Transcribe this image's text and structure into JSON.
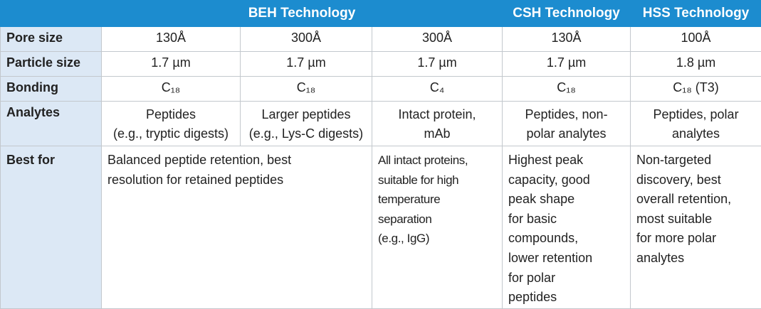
{
  "table": {
    "header": [
      "BEH Technology",
      "CSH Technology",
      "HSS Technology"
    ],
    "rows": [
      {
        "label": "Pore size",
        "cells": [
          "130Å",
          "300Å",
          "300Å",
          "130Å",
          "100Å"
        ]
      },
      {
        "label": "Particle size",
        "cells": [
          "1.7 µm",
          "1.7 µm",
          "1.7 µm",
          "1.7 µm",
          "1.8 µm"
        ]
      },
      {
        "label": "Bonding",
        "cells": [
          "C₁₈",
          "C₁₈",
          "C₄",
          "C₁₈",
          "C₁₈ (T3)"
        ]
      },
      {
        "label": "Analytes",
        "cells": [
          [
            "Peptides",
            "(e.g., tryptic digests)"
          ],
          [
            "Larger peptides",
            "(e.g., Lys-C digests)"
          ],
          [
            "Intact protein,",
            "mAb"
          ],
          [
            "Peptides, non-",
            "polar analytes"
          ],
          [
            "Peptides, polar",
            "analytes"
          ]
        ]
      },
      {
        "label": "Best for",
        "cells": [
          [
            "Balanced peptide retention, best",
            "resolution for retained peptides"
          ],
          [
            "All intact proteins,",
            "suitable for high",
            "temperature",
            "separation",
            "(e.g., IgG)"
          ],
          [
            "Highest peak",
            "capacity, good",
            "peak shape",
            "for basic",
            "compounds,",
            "lower retention",
            "for polar",
            "peptides"
          ],
          [
            "Non-targeted",
            "discovery, best",
            "overall retention,",
            "most suitable",
            "for more polar",
            "analytes"
          ]
        ]
      }
    ]
  }
}
